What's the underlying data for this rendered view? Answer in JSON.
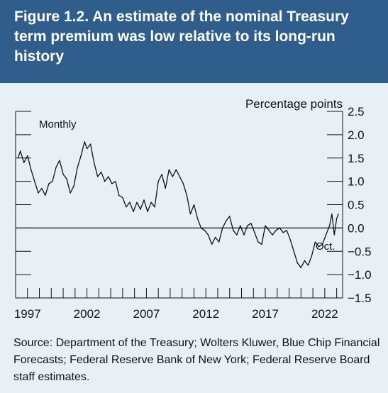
{
  "figure_title": "Figure 1.2. An estimate of the nominal Treasury term premium was low relative to its long-run history",
  "source_note": "Source: Department of the Treasury; Wolters Kluwer, Blue Chip Financial Forecasts; Federal Reserve Bank of New York; Federal Reserve Board staff estimates.",
  "colors": {
    "header": "#2f5d8c",
    "panel": "#e8f0f6",
    "line": "#111111"
  },
  "chart_data": {
    "type": "line",
    "title": "",
    "xlabel": "",
    "ylabel": "Percentage points",
    "frequency_label": "Monthly",
    "end_label": "Oct.",
    "xlim": [
      1996,
      2023.5
    ],
    "ylim": [
      -1.5,
      2.5
    ],
    "y_ticks": [
      2.5,
      2.0,
      1.5,
      1.0,
      0.5,
      0.0,
      -0.5,
      -1.0,
      -1.5
    ],
    "y_tick_labels": [
      "2.5",
      "2.0",
      "1.5",
      "1.0",
      "0.5",
      "0.0",
      "−0.5",
      "−1.0",
      "−1.5"
    ],
    "x_tick_labels": [
      "1997",
      "2002",
      "2007",
      "2012",
      "2017",
      "2022"
    ],
    "x_tick_values": [
      1997,
      2002,
      2007,
      2012,
      2017,
      2022
    ],
    "zero_line": true,
    "grid": false,
    "series": [
      {
        "values": [
          [
            1996.2,
            1.5
          ],
          [
            1996.4,
            1.65
          ],
          [
            1996.7,
            1.4
          ],
          [
            1997.0,
            1.55
          ],
          [
            1997.3,
            1.25
          ],
          [
            1997.6,
            1.0
          ],
          [
            1997.9,
            0.75
          ],
          [
            1998.2,
            0.85
          ],
          [
            1998.5,
            0.7
          ],
          [
            1998.8,
            0.95
          ],
          [
            1999.1,
            1.0
          ],
          [
            1999.4,
            1.3
          ],
          [
            1999.7,
            1.45
          ],
          [
            2000.0,
            1.15
          ],
          [
            2000.3,
            1.05
          ],
          [
            2000.6,
            0.75
          ],
          [
            2000.9,
            0.9
          ],
          [
            2001.2,
            1.3
          ],
          [
            2001.5,
            1.55
          ],
          [
            2001.8,
            1.85
          ],
          [
            2002.0,
            1.7
          ],
          [
            2002.3,
            1.8
          ],
          [
            2002.6,
            1.4
          ],
          [
            2002.9,
            1.1
          ],
          [
            2003.2,
            1.2
          ],
          [
            2003.5,
            1.0
          ],
          [
            2003.8,
            1.1
          ],
          [
            2004.1,
            0.95
          ],
          [
            2004.4,
            1.0
          ],
          [
            2004.7,
            0.7
          ],
          [
            2005.0,
            0.65
          ],
          [
            2005.3,
            0.45
          ],
          [
            2005.6,
            0.55
          ],
          [
            2005.9,
            0.35
          ],
          [
            2006.2,
            0.55
          ],
          [
            2006.5,
            0.4
          ],
          [
            2006.8,
            0.6
          ],
          [
            2007.1,
            0.35
          ],
          [
            2007.4,
            0.55
          ],
          [
            2007.7,
            0.45
          ],
          [
            2008.0,
            1.0
          ],
          [
            2008.3,
            1.15
          ],
          [
            2008.6,
            0.85
          ],
          [
            2008.9,
            1.25
          ],
          [
            2009.2,
            1.1
          ],
          [
            2009.5,
            1.25
          ],
          [
            2009.8,
            1.1
          ],
          [
            2010.1,
            0.95
          ],
          [
            2010.4,
            0.7
          ],
          [
            2010.7,
            0.3
          ],
          [
            2011.0,
            0.5
          ],
          [
            2011.3,
            0.2
          ],
          [
            2011.6,
            0.0
          ],
          [
            2011.9,
            -0.05
          ],
          [
            2012.2,
            -0.15
          ],
          [
            2012.5,
            -0.35
          ],
          [
            2012.8,
            -0.2
          ],
          [
            2013.1,
            -0.3
          ],
          [
            2013.4,
            0.0
          ],
          [
            2013.7,
            0.15
          ],
          [
            2014.0,
            0.25
          ],
          [
            2014.3,
            -0.05
          ],
          [
            2014.6,
            -0.15
          ],
          [
            2014.9,
            0.05
          ],
          [
            2015.2,
            -0.15
          ],
          [
            2015.5,
            0.05
          ],
          [
            2015.8,
            0.1
          ],
          [
            2016.1,
            -0.1
          ],
          [
            2016.4,
            -0.3
          ],
          [
            2016.7,
            -0.35
          ],
          [
            2017.0,
            0.05
          ],
          [
            2017.3,
            -0.05
          ],
          [
            2017.6,
            -0.15
          ],
          [
            2017.9,
            -0.05
          ],
          [
            2018.2,
            0.0
          ],
          [
            2018.5,
            -0.1
          ],
          [
            2018.8,
            -0.05
          ],
          [
            2019.1,
            -0.25
          ],
          [
            2019.4,
            -0.5
          ],
          [
            2019.7,
            -0.75
          ],
          [
            2020.0,
            -0.85
          ],
          [
            2020.3,
            -0.7
          ],
          [
            2020.6,
            -0.8
          ],
          [
            2020.9,
            -0.6
          ],
          [
            2021.2,
            -0.3
          ],
          [
            2021.5,
            -0.4
          ],
          [
            2021.8,
            -0.35
          ],
          [
            2022.1,
            -0.15
          ],
          [
            2022.4,
            0.05
          ],
          [
            2022.6,
            0.3
          ],
          [
            2022.8,
            -0.15
          ],
          [
            2023.0,
            0.2
          ],
          [
            2023.15,
            0.3
          ]
        ]
      }
    ]
  }
}
